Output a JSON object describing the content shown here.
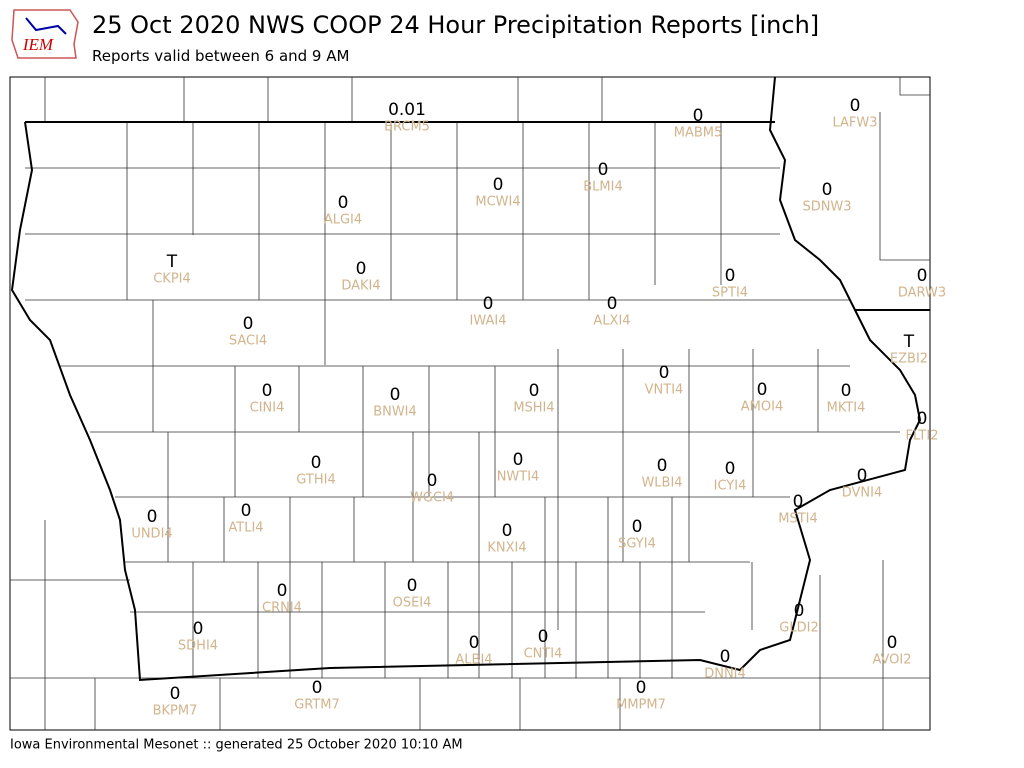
{
  "header": {
    "logo": "IEM",
    "title": "25 Oct 2020 NWS COOP 24 Hour Precipitation Reports [inch]",
    "subtitle": "Reports valid between 6 and 9 AM"
  },
  "footer": "Iowa Environmental Mesonet :: generated 25 October 2020 10:10 AM",
  "stations": [
    {
      "value": "0.01",
      "id": "BRCM5"
    },
    {
      "value": "0",
      "id": "MABM5"
    },
    {
      "value": "0",
      "id": "LAFW3"
    },
    {
      "value": "0",
      "id": "MCWI4"
    },
    {
      "value": "0",
      "id": "BLMI4"
    },
    {
      "value": "0",
      "id": "SDNW3"
    },
    {
      "value": "0",
      "id": "ALGI4"
    },
    {
      "value": "T",
      "id": "CKPI4"
    },
    {
      "value": "0",
      "id": "DAKI4"
    },
    {
      "value": "0",
      "id": "IWAI4"
    },
    {
      "value": "0",
      "id": "ALXI4"
    },
    {
      "value": "0",
      "id": "SPTI4"
    },
    {
      "value": "0",
      "id": "DARW3"
    },
    {
      "value": "0",
      "id": "SACI4"
    },
    {
      "value": "T",
      "id": "EZBI2"
    },
    {
      "value": "0",
      "id": "CINI4"
    },
    {
      "value": "0",
      "id": "BNWI4"
    },
    {
      "value": "0",
      "id": "MSHI4"
    },
    {
      "value": "0",
      "id": "VNTI4"
    },
    {
      "value": "0",
      "id": "AMOI4"
    },
    {
      "value": "0",
      "id": "MKTI4"
    },
    {
      "value": "0",
      "id": "FLTI2"
    },
    {
      "value": "0",
      "id": "GTHI4"
    },
    {
      "value": "0",
      "id": "WGCI4"
    },
    {
      "value": "0",
      "id": "NWTI4"
    },
    {
      "value": "0",
      "id": "WLBI4"
    },
    {
      "value": "0",
      "id": "ICYI4"
    },
    {
      "value": "0",
      "id": "DVNI4"
    },
    {
      "value": "0",
      "id": "MSTI4"
    },
    {
      "value": "0",
      "id": "UNDI4"
    },
    {
      "value": "0",
      "id": "ATLI4"
    },
    {
      "value": "0",
      "id": "KNXI4"
    },
    {
      "value": "0",
      "id": "SGYI4"
    },
    {
      "value": "0",
      "id": "CRNI4"
    },
    {
      "value": "0",
      "id": "OSEI4"
    },
    {
      "value": "0",
      "id": "GLDI2"
    },
    {
      "value": "0",
      "id": "SDHI4"
    },
    {
      "value": "0",
      "id": "ALBI4"
    },
    {
      "value": "0",
      "id": "CNTI4"
    },
    {
      "value": "0",
      "id": "AVOI2"
    },
    {
      "value": "0",
      "id": "DNNI4"
    },
    {
      "value": "0",
      "id": "BKPM7"
    },
    {
      "value": "0",
      "id": "GRTM7"
    },
    {
      "value": "0",
      "id": "MMPM7"
    }
  ]
}
